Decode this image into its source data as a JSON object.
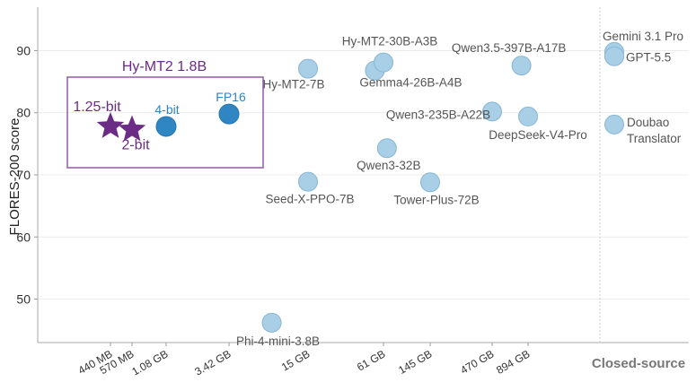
{
  "chart_data": {
    "type": "scatter",
    "ylabel": "FLORES-200 score",
    "ylim": [
      43,
      97
    ],
    "y_ticks": [
      50,
      60,
      70,
      80,
      90
    ],
    "x_ticks": [
      "440 MB",
      "570 MB",
      "1.08 GB",
      "3.42 GB",
      "15 GB",
      "61 GB",
      "145 GB",
      "470 GB",
      "894 GB"
    ],
    "closed_label": "Closed-source",
    "grid": true,
    "colors": {
      "open": "#a9cfe6",
      "open_stroke": "#86b6d4",
      "hymt_dot": "#2f86c3",
      "hymt_dot_label": "#2f86c3",
      "star": "#6a2c85",
      "box": "#9a63ab",
      "label": "#555555"
    },
    "highlight_box": {
      "title": "Hy-MT2 1.8B",
      "points": [
        {
          "label": "1.25-bit",
          "size": "440 MB",
          "y": 77.8,
          "marker": "star"
        },
        {
          "label": "2-bit",
          "size": "570 MB",
          "y": 77.3,
          "marker": "star"
        },
        {
          "label": "4-bit",
          "size": "1.08 GB",
          "y": 77.8,
          "marker": "dot"
        },
        {
          "label": "FP16",
          "size": "3.42 GB",
          "y": 79.8,
          "marker": "dot"
        }
      ]
    },
    "points": [
      {
        "label": "Hy-MT2-7B",
        "size": "15 GB",
        "y": 87.1
      },
      {
        "label": "Seed-X-PPO-7B",
        "size": "15 GB",
        "y": 68.9
      },
      {
        "label": "Phi-4-mini-3.8B",
        "size": "7.6 GB",
        "y": 46.2
      },
      {
        "label": "Gemma4-26B-A4B",
        "size": "52 GB",
        "y": 86.8
      },
      {
        "label": "Hy-MT2-30B-A3B",
        "size": "61 GB",
        "y": 88.1
      },
      {
        "label": "Qwen3-32B",
        "size": "65 GB",
        "y": 74.3
      },
      {
        "label": "Tower-Plus-72B",
        "size": "145 GB",
        "y": 68.8
      },
      {
        "label": "Qwen3-235B-A22B",
        "size": "470 GB",
        "y": 80.2
      },
      {
        "label": "Qwen3.5-397B-A17B",
        "size": "794 GB",
        "y": 87.6
      },
      {
        "label": "DeepSeek-V4-Pro",
        "size": "894 GB",
        "y": 79.4
      },
      {
        "label": "Gemini 3.1 Pro",
        "size": "Closed-source",
        "y": 89.8
      },
      {
        "label": "GPT-5.5",
        "size": "Closed-source",
        "y": 89.1
      },
      {
        "label": "Doubao Translator",
        "size": "Closed-source",
        "y": 78.1
      }
    ]
  }
}
